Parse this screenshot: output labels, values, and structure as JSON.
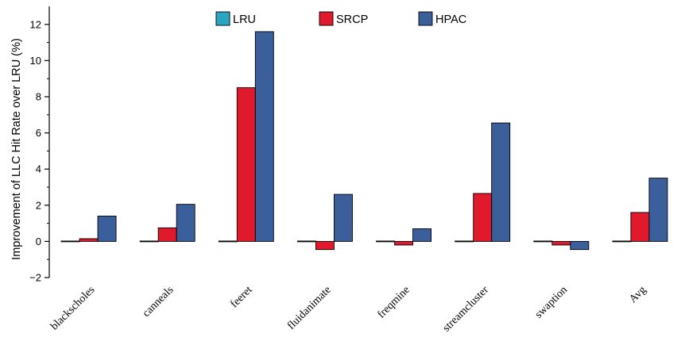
{
  "chart_data": {
    "type": "bar",
    "title": "",
    "xlabel": "",
    "ylabel": "Improvement of LLC Hit Rate over LRU (%)",
    "ylim": [
      -2,
      13
    ],
    "yticks": [
      -2,
      0,
      2,
      4,
      6,
      8,
      10,
      12
    ],
    "ytick_labels": [
      "−2",
      "0",
      "2",
      "4",
      "6",
      "8",
      "10",
      "12"
    ],
    "categories": [
      "blackscholes",
      "canneals",
      "feeret",
      "fluidanimate",
      "freqmine",
      "streamcluster",
      "swaption",
      "Avg"
    ],
    "series": [
      {
        "name": "LRU",
        "color": "#2ba6c2",
        "values": [
          0,
          0,
          0,
          0,
          0,
          0,
          0,
          0
        ]
      },
      {
        "name": "SRCP",
        "color": "#e01a2c",
        "values": [
          0.15,
          0.75,
          8.5,
          -0.45,
          -0.2,
          2.65,
          -0.2,
          1.6
        ]
      },
      {
        "name": "HPAC",
        "color": "#3a5f9b",
        "values": [
          1.4,
          2.05,
          11.6,
          2.6,
          0.7,
          6.55,
          -0.45,
          3.5
        ]
      }
    ],
    "grid": false,
    "legend_position": "top-center"
  }
}
